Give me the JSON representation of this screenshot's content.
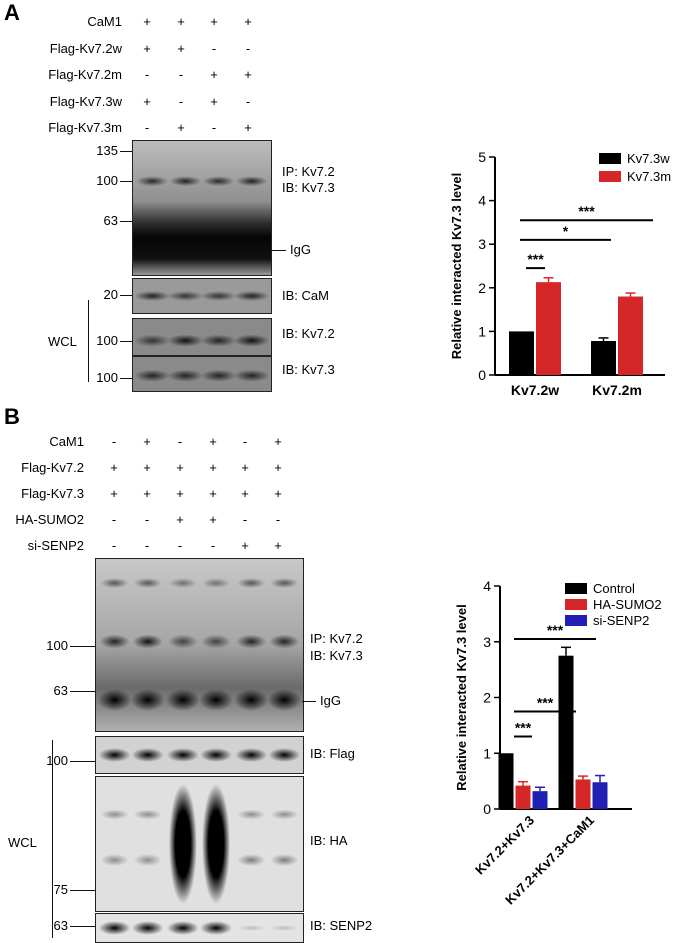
{
  "panelA": {
    "letter": "A",
    "conditions": [
      {
        "label": "CaM1",
        "signs": [
          "+",
          "+",
          "+",
          "+"
        ]
      },
      {
        "label": "Flag-Kv7.2w",
        "signs": [
          "+",
          "+",
          "-",
          "-"
        ]
      },
      {
        "label": "Flag-Kv7.2m",
        "signs": [
          "-",
          "-",
          "+",
          "+"
        ]
      },
      {
        "label": "Flag-Kv7.3w",
        "signs": [
          "+",
          "-",
          "+",
          "-"
        ]
      },
      {
        "label": "Flag-Kv7.3m",
        "signs": [
          "-",
          "+",
          "-",
          "+"
        ]
      }
    ],
    "mw_ip": [
      "135",
      "100",
      "63"
    ],
    "ip_label_1": "IP: Kv7.2",
    "ip_label_2": "IB: Kv7.3",
    "igg_label": "IgG",
    "wcl_label": "WCL",
    "wcl_blots": [
      {
        "mw": "20",
        "label": "IB: CaM"
      },
      {
        "mw": "100",
        "label": "IB: Kv7.2"
      },
      {
        "mw": "100",
        "label": "IB: Kv7.3"
      }
    ]
  },
  "panelB": {
    "letter": "B",
    "conditions": [
      {
        "label": "CaM1",
        "signs": [
          "-",
          "+",
          "-",
          "+",
          "-",
          "+"
        ]
      },
      {
        "label": "Flag-Kv7.2",
        "signs": [
          "+",
          "+",
          "+",
          "+",
          "+",
          "+"
        ]
      },
      {
        "label": "Flag-Kv7.3",
        "signs": [
          "+",
          "+",
          "+",
          "+",
          "+",
          "+"
        ]
      },
      {
        "label": "HA-SUMO2",
        "signs": [
          "-",
          "-",
          "+",
          "+",
          "-",
          "-"
        ]
      },
      {
        "label": "si-SENP2",
        "signs": [
          "-",
          "-",
          "-",
          "-",
          "+",
          "+"
        ]
      }
    ],
    "mw_ip": [
      "100",
      "63"
    ],
    "ip_label_1": "IP: Kv7.2",
    "ip_label_2": "IB: Kv7.3",
    "igg_label": "IgG",
    "wcl_label": "WCL",
    "wcl_blots": [
      {
        "mw": "100",
        "label": "IB: Flag"
      },
      {
        "mw": "75",
        "label": "IB: HA"
      },
      {
        "mw": "63",
        "label": "IB: SENP2"
      }
    ]
  },
  "chart_data": [
    {
      "type": "bar",
      "title": "",
      "xlabel": "",
      "ylabel": "Relative interacted Kv7.3 level",
      "ylim": [
        0,
        5
      ],
      "yticks": [
        "0",
        "1",
        "2",
        "3",
        "4",
        "5"
      ],
      "categories": [
        "Kv7.2w",
        "Kv7.2m"
      ],
      "series": [
        {
          "name": "Kv7.3w",
          "color": "#000000",
          "values": [
            1.0,
            0.78
          ],
          "errors": [
            0.0,
            0.07
          ]
        },
        {
          "name": "Kv7.3m",
          "color": "#d62728",
          "values": [
            2.13,
            1.8
          ],
          "errors": [
            0.1,
            0.08
          ]
        }
      ],
      "significance": [
        "***",
        "*",
        "***"
      ],
      "legend": "top-right"
    },
    {
      "type": "bar",
      "title": "",
      "xlabel": "",
      "ylabel": "Relative interacted Kv7.3 level",
      "ylim": [
        0,
        4
      ],
      "yticks": [
        "0",
        "1",
        "2",
        "3",
        "4"
      ],
      "categories": [
        "Kv7.2+Kv7.3",
        "Kv7.2+Kv7.3+CaM1"
      ],
      "series": [
        {
          "name": "Control",
          "color": "#000000",
          "values": [
            1.0,
            2.75
          ],
          "errors": [
            0.0,
            0.15
          ]
        },
        {
          "name": "HA-SUMO2",
          "color": "#d62728",
          "values": [
            0.42,
            0.53
          ],
          "errors": [
            0.07,
            0.06
          ]
        },
        {
          "name": "si-SENP2",
          "color": "#1f1fb4",
          "values": [
            0.32,
            0.48
          ],
          "errors": [
            0.07,
            0.12
          ]
        }
      ],
      "significance": [
        "***",
        "***",
        "***"
      ],
      "legend": "top-right"
    }
  ]
}
